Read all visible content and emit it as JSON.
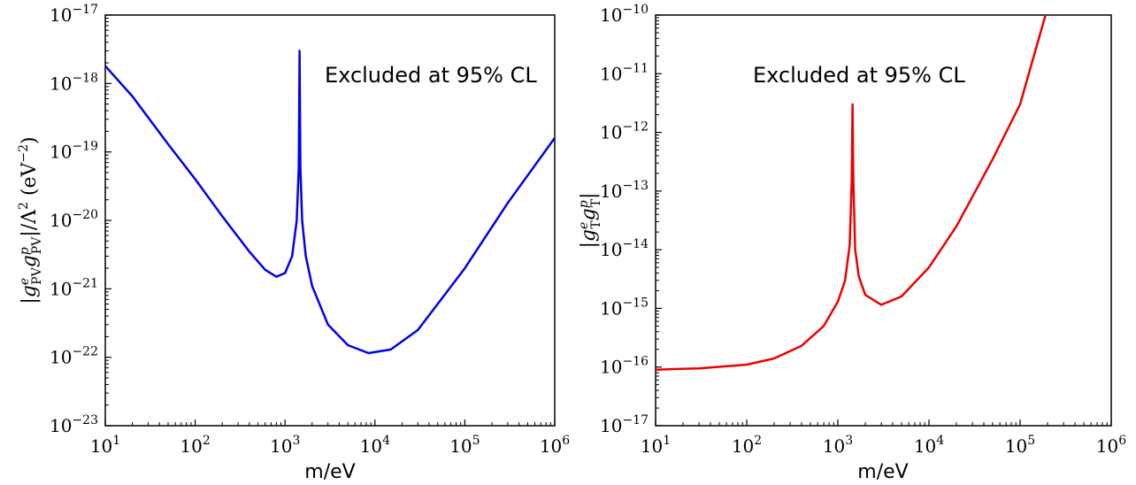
{
  "chart_data": [
    {
      "type": "line",
      "xscale": "log",
      "yscale": "log",
      "xlim": [
        10,
        1000000
      ],
      "ylim": [
        1e-23,
        1e-17
      ],
      "xlabel": "m/eV",
      "ylabel": "|g^e_PV g^p_PV|/Λ^2 (eV^-2)",
      "x_ticks": [
        10,
        100,
        1000,
        10000,
        100000,
        1000000
      ],
      "x_tick_labels": [
        "10^1",
        "10^2",
        "10^3",
        "10^4",
        "10^5",
        "10^6"
      ],
      "y_ticks": [
        1e-23,
        1e-22,
        1e-21,
        1e-20,
        1e-19,
        1e-18,
        1e-17
      ],
      "y_tick_labels": [
        "10^-23",
        "10^-22",
        "10^-21",
        "10^-20",
        "10^-19",
        "10^-18",
        "10^-17"
      ],
      "annotation": "Excluded at 95% CL",
      "grid": false,
      "series": [
        {
          "color": "#0000ee",
          "x": [
            10,
            20,
            50,
            100,
            200,
            400,
            600,
            800,
            1000,
            1200,
            1350,
            1420,
            1450,
            1480,
            1550,
            1700,
            2000,
            3000,
            5000,
            8500,
            15000,
            30000,
            100000,
            300000,
            1000000
          ],
          "y": [
            1.8e-18,
            6.5e-19,
            1.3e-19,
            4e-20,
            1.15e-20,
            3.5e-21,
            1.9e-21,
            1.5e-21,
            1.7e-21,
            3e-21,
            1e-20,
            6e-20,
            3e-18,
            6e-20,
            1e-20,
            3e-21,
            1.1e-21,
            3e-22,
            1.5e-22,
            1.15e-22,
            1.3e-22,
            2.5e-22,
            2e-21,
            1.8e-20,
            1.6e-19
          ]
        }
      ]
    },
    {
      "type": "line",
      "xscale": "log",
      "yscale": "log",
      "xlim": [
        10,
        1000000
      ],
      "ylim": [
        1e-17,
        1e-10
      ],
      "xlabel": "m/eV",
      "ylabel": "|g^e_T g^p_T|",
      "x_ticks": [
        10,
        100,
        1000,
        10000,
        100000,
        1000000
      ],
      "x_tick_labels": [
        "10^1",
        "10^2",
        "10^3",
        "10^4",
        "10^5",
        "10^6"
      ],
      "y_ticks": [
        1e-17,
        1e-16,
        1e-15,
        1e-14,
        1e-13,
        1e-12,
        1e-11,
        1e-10
      ],
      "y_tick_labels": [
        "10^-17",
        "10^-16",
        "10^-15",
        "10^-14",
        "10^-13",
        "10^-12",
        "10^-11",
        "10^-10"
      ],
      "annotation": "Excluded at 95% CL",
      "grid": false,
      "series": [
        {
          "color": "#ee0000",
          "x": [
            10,
            30,
            100,
            200,
            400,
            700,
            1000,
            1200,
            1350,
            1420,
            1450,
            1480,
            1550,
            1700,
            2000,
            3000,
            5000,
            10000,
            20000,
            50000,
            100000,
            190000
          ],
          "y": [
            9e-17,
            9.5e-17,
            1.1e-16,
            1.4e-16,
            2.3e-16,
            5e-16,
            1.3e-15,
            3e-15,
            1.2e-14,
            1.5e-13,
            3e-12,
            1.5e-13,
            1e-14,
            3.5e-15,
            1.7e-15,
            1.15e-15,
            1.6e-15,
            5e-15,
            2.5e-14,
            3.5e-13,
            3e-12,
            1e-10
          ]
        }
      ]
    }
  ]
}
